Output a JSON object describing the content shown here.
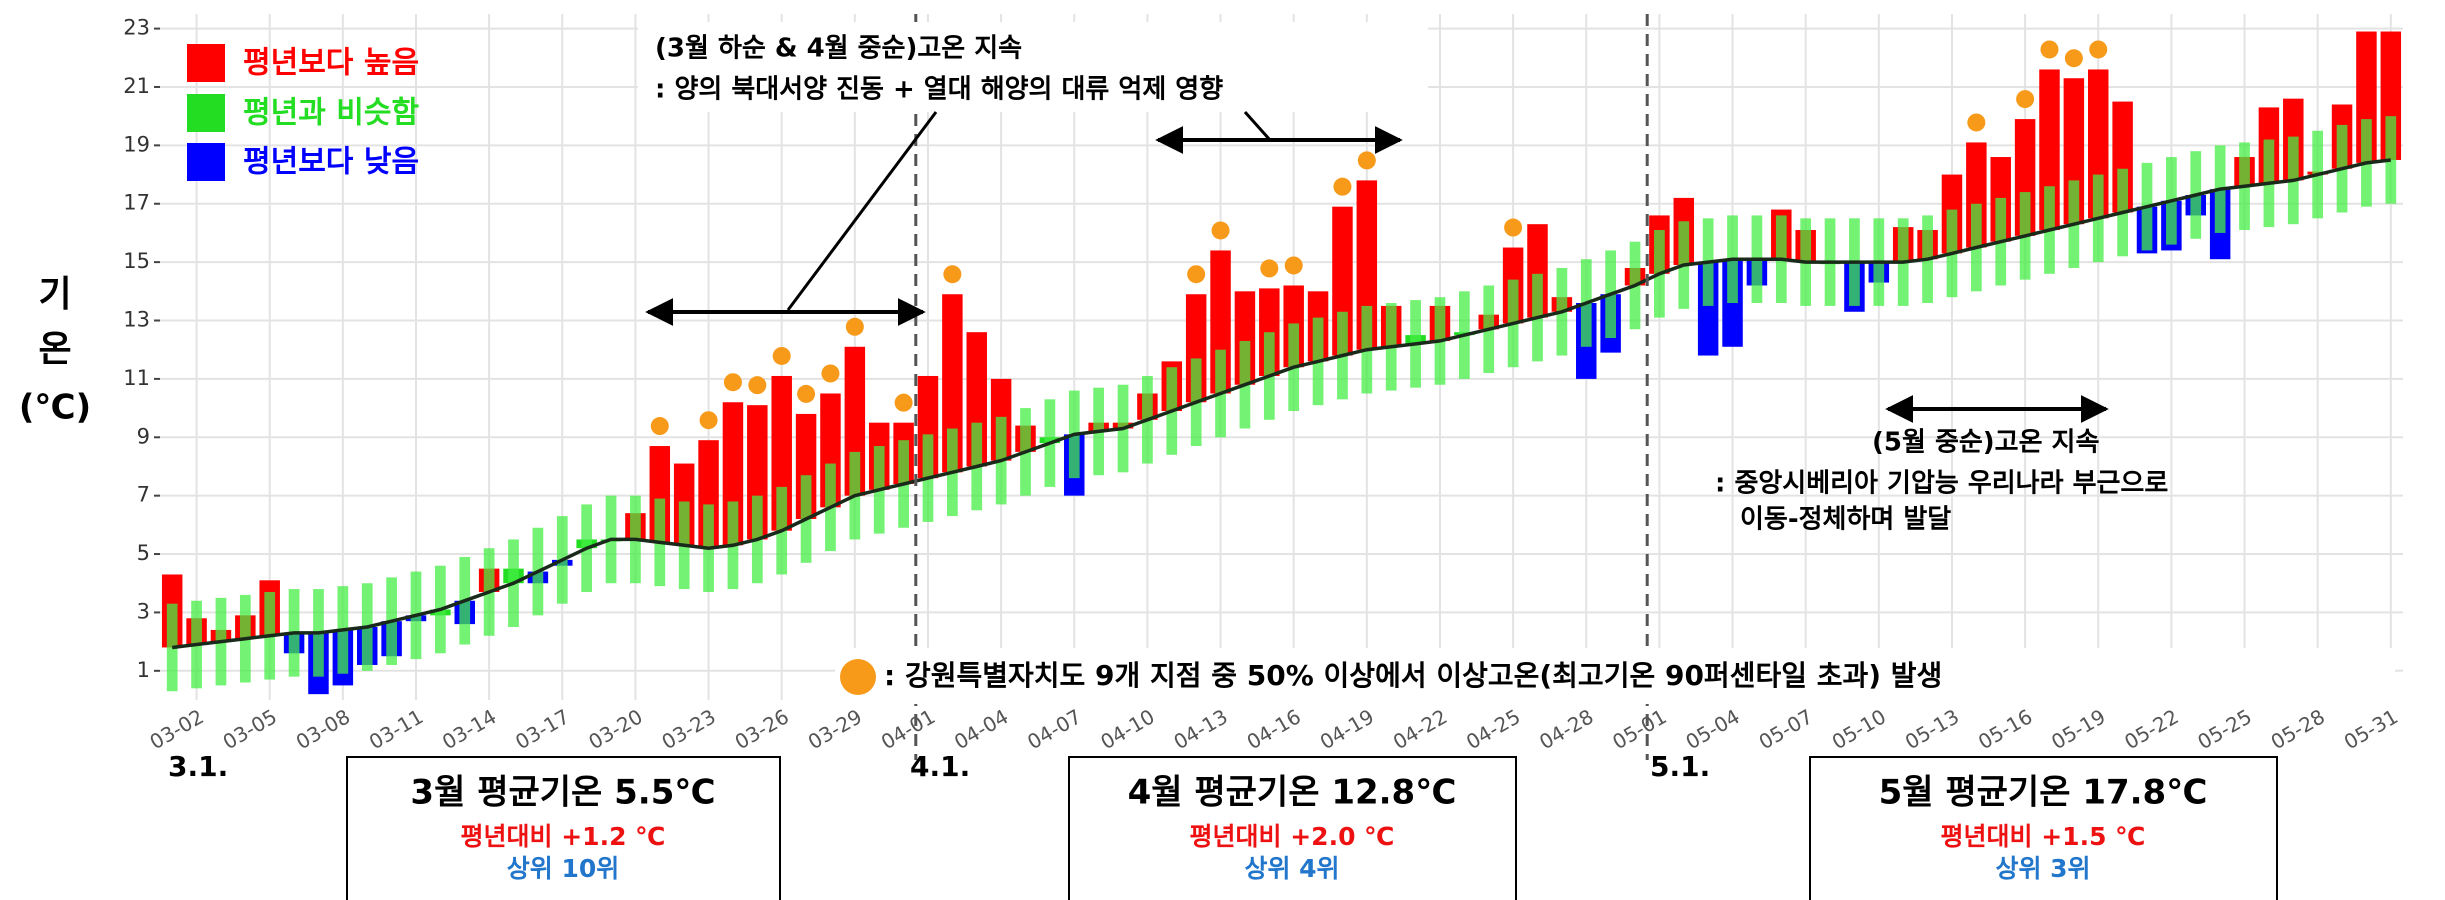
{
  "chart_data": {
    "type": "bar",
    "y_axis_label": [
      "기",
      "온",
      "(℃)"
    ],
    "legend": [
      {
        "name": "평년보다 높음",
        "color": "#ff0000"
      },
      {
        "name": "평년과 비슷함",
        "color": "#22dd22"
      },
      {
        "name": "평년보다 낮음",
        "color": "#0000ff"
      }
    ],
    "categories": [
      null,
      "03-02",
      null,
      null,
      "03-05",
      null,
      null,
      "03-08",
      null,
      null,
      "03-11",
      null,
      null,
      "03-14",
      null,
      null,
      "03-17",
      null,
      null,
      "03-20",
      null,
      null,
      "03-23",
      null,
      null,
      "03-26",
      null,
      null,
      "03-29",
      null,
      null,
      "04-01",
      null,
      null,
      "04-04",
      null,
      null,
      "04-07",
      null,
      null,
      "04-10",
      null,
      null,
      "04-13",
      null,
      null,
      "04-16",
      null,
      null,
      "04-19",
      null,
      null,
      "04-22",
      null,
      null,
      "04-25",
      null,
      null,
      "04-28",
      null,
      null,
      "05-01",
      null,
      null,
      "05-04",
      null,
      null,
      "05-07",
      null,
      null,
      "05-10",
      null,
      null,
      "05-13",
      null,
      null,
      "05-16",
      null,
      null,
      "05-19",
      null,
      null,
      "05-22",
      null,
      null,
      "05-25",
      null,
      null,
      "05-28",
      null,
      null,
      "05-31"
    ],
    "values": [
      4.3,
      2.8,
      2.4,
      2.9,
      4.1,
      1.6,
      0.2,
      0.5,
      1.2,
      1.5,
      2.7,
      2.9,
      2.6,
      4.5,
      4.5,
      4.0,
      4.6,
      5.5,
      5.5,
      6.4,
      8.7,
      8.1,
      8.9,
      10.2,
      10.1,
      11.1,
      9.8,
      10.5,
      12.1,
      9.5,
      9.5,
      11.1,
      13.9,
      12.6,
      11.0,
      9.4,
      9.0,
      7.0,
      9.5,
      9.5,
      10.5,
      11.6,
      13.9,
      15.4,
      14.0,
      14.1,
      14.2,
      14.0,
      16.9,
      17.8,
      13.5,
      12.5,
      13.5,
      12.6,
      13.2,
      15.5,
      16.3,
      13.8,
      11.0,
      11.9,
      14.8,
      16.6,
      17.2,
      11.8,
      12.1,
      14.2,
      16.8,
      16.1,
      15.0,
      13.3,
      14.3,
      16.2,
      16.1,
      18.0,
      19.1,
      18.6,
      19.9,
      21.6,
      21.3,
      21.6,
      20.5,
      15.3,
      15.4,
      16.6,
      15.1,
      18.6,
      20.3,
      20.6,
      18.1,
      20.4,
      22.9,
      22.9
    ],
    "classes": [
      0,
      0,
      0,
      0,
      0,
      2,
      2,
      2,
      2,
      2,
      2,
      1,
      2,
      0,
      1,
      2,
      2,
      1,
      1,
      0,
      0,
      0,
      0,
      0,
      0,
      0,
      0,
      0,
      0,
      0,
      0,
      0,
      0,
      0,
      0,
      0,
      1,
      2,
      0,
      0,
      0,
      0,
      0,
      0,
      0,
      0,
      0,
      0,
      0,
      0,
      0,
      1,
      0,
      1,
      0,
      0,
      0,
      0,
      2,
      2,
      0,
      0,
      0,
      2,
      2,
      2,
      0,
      0,
      1,
      2,
      2,
      0,
      0,
      0,
      0,
      0,
      0,
      0,
      0,
      0,
      0,
      2,
      2,
      2,
      2,
      0,
      0,
      0,
      0,
      0,
      0,
      0
    ],
    "normal": [
      1.8,
      1.9,
      2.0,
      2.1,
      2.2,
      2.3,
      2.3,
      2.4,
      2.5,
      2.7,
      2.9,
      3.1,
      3.4,
      3.7,
      4.0,
      4.4,
      4.8,
      5.2,
      5.5,
      5.5,
      5.4,
      5.3,
      5.2,
      5.3,
      5.5,
      5.8,
      6.2,
      6.6,
      7.0,
      7.2,
      7.4,
      7.6,
      7.8,
      8.0,
      8.2,
      8.5,
      8.8,
      9.1,
      9.2,
      9.3,
      9.6,
      9.9,
      10.2,
      10.5,
      10.8,
      11.1,
      11.4,
      11.6,
      11.8,
      12.0,
      12.1,
      12.2,
      12.3,
      12.5,
      12.7,
      12.9,
      13.1,
      13.3,
      13.6,
      13.9,
      14.2,
      14.6,
      14.9,
      15.0,
      15.1,
      15.1,
      15.1,
      15.0,
      15.0,
      15.0,
      15.0,
      15.0,
      15.1,
      15.3,
      15.5,
      15.7,
      15.9,
      16.1,
      16.3,
      16.5,
      16.7,
      16.9,
      17.1,
      17.3,
      17.5,
      17.6,
      17.7,
      17.8,
      18.0,
      18.2,
      18.4,
      18.5
    ],
    "normal_low": [
      0.3,
      0.4,
      0.5,
      0.6,
      0.7,
      0.8,
      0.8,
      0.9,
      1.0,
      1.2,
      1.4,
      1.6,
      1.9,
      2.2,
      2.5,
      2.9,
      3.3,
      3.7,
      4.0,
      4.0,
      3.9,
      3.8,
      3.7,
      3.8,
      4.0,
      4.3,
      4.7,
      5.1,
      5.5,
      5.7,
      5.9,
      6.1,
      6.3,
      6.5,
      6.7,
      7.0,
      7.3,
      7.6,
      7.7,
      7.8,
      8.1,
      8.4,
      8.7,
      9.0,
      9.3,
      9.6,
      9.9,
      10.1,
      10.3,
      10.5,
      10.6,
      10.7,
      10.8,
      11.0,
      11.2,
      11.4,
      11.6,
      11.8,
      12.1,
      12.4,
      12.7,
      13.1,
      13.4,
      13.5,
      13.6,
      13.6,
      13.6,
      13.5,
      13.5,
      13.5,
      13.5,
      13.5,
      13.6,
      13.8,
      14.0,
      14.2,
      14.4,
      14.6,
      14.8,
      15.0,
      15.2,
      15.4,
      15.6,
      15.8,
      16.0,
      16.1,
      16.2,
      16.3,
      16.5,
      16.7,
      16.9,
      17.0
    ],
    "normal_high": [
      3.3,
      3.4,
      3.5,
      3.6,
      3.7,
      3.8,
      3.8,
      3.9,
      4.0,
      4.2,
      4.4,
      4.6,
      4.9,
      5.2,
      5.5,
      5.9,
      6.3,
      6.7,
      7.0,
      7.0,
      6.9,
      6.8,
      6.7,
      6.8,
      7.0,
      7.3,
      7.7,
      8.1,
      8.5,
      8.7,
      8.9,
      9.1,
      9.3,
      9.5,
      9.7,
      10.0,
      10.3,
      10.6,
      10.7,
      10.8,
      11.1,
      11.4,
      11.7,
      12.0,
      12.3,
      12.6,
      12.9,
      13.1,
      13.3,
      13.5,
      13.6,
      13.7,
      13.8,
      14.0,
      14.2,
      14.4,
      14.6,
      14.8,
      15.1,
      15.4,
      15.7,
      16.1,
      16.4,
      16.5,
      16.6,
      16.6,
      16.6,
      16.5,
      16.5,
      16.5,
      16.5,
      16.5,
      16.6,
      16.8,
      17.0,
      17.2,
      17.4,
      17.6,
      17.8,
      18.0,
      18.2,
      18.4,
      18.6,
      18.8,
      19.0,
      19.1,
      19.2,
      19.3,
      19.5,
      19.7,
      19.9,
      20.0
    ],
    "normal_range_color": "#44ee44",
    "normal_line_color": "#1a2a1a",
    "extreme": [
      0,
      0,
      0,
      0,
      0,
      0,
      0,
      0,
      0,
      0,
      0,
      0,
      0,
      0,
      0,
      0,
      0,
      0,
      0,
      0,
      1,
      0,
      1,
      1,
      1,
      1,
      1,
      1,
      1,
      0,
      1,
      0,
      1,
      0,
      0,
      0,
      0,
      0,
      0,
      0,
      0,
      0,
      1,
      1,
      0,
      1,
      1,
      0,
      1,
      1,
      0,
      0,
      0,
      0,
      0,
      1,
      0,
      0,
      0,
      0,
      0,
      0,
      0,
      0,
      0,
      0,
      0,
      0,
      0,
      0,
      0,
      0,
      0,
      0,
      1,
      0,
      1,
      1,
      1,
      1,
      0,
      0,
      0,
      0,
      0,
      0,
      0,
      0,
      0,
      0,
      0,
      0
    ],
    "extreme_color": "#f79a1a",
    "extreme_label": ": 강원특별자치도 9개 지점 중 50% 이상에서 이상고온(최고기온 90퍼센타일 초과) 발생",
    "ylim": [
      0,
      23.5
    ],
    "yticks": [
      1,
      3,
      5,
      7,
      9,
      11,
      13,
      15,
      17,
      19,
      21,
      23
    ],
    "grid": true,
    "annotations": [
      {
        "lines": [
          "(3월 하순 & 4월 중순)고온 지속",
          ": 양의 북대서양 진동 + 열대 해양의 대류 억제 영향"
        ]
      },
      {
        "lines": [
          "(5월 중순)고온 지속",
          ": 중앙시베리아 기압능 우리나라 부근으로",
          "이동-정체하며 발달"
        ]
      }
    ],
    "month_labels": [
      "3.1.",
      "4.1.",
      "5.1."
    ],
    "summaries": [
      {
        "title": "3월 평균기온 5.5℃",
        "diff": "평년대비 +1.2 ℃",
        "rank": "상위 10위"
      },
      {
        "title": "4월 평균기온 12.8℃",
        "diff": "평년대비 +2.0 ℃",
        "rank": "상위 4위"
      },
      {
        "title": "5월 평균기온 17.8℃",
        "diff": "평년대비 +1.5 ℃",
        "rank": "상위 3위"
      }
    ]
  }
}
